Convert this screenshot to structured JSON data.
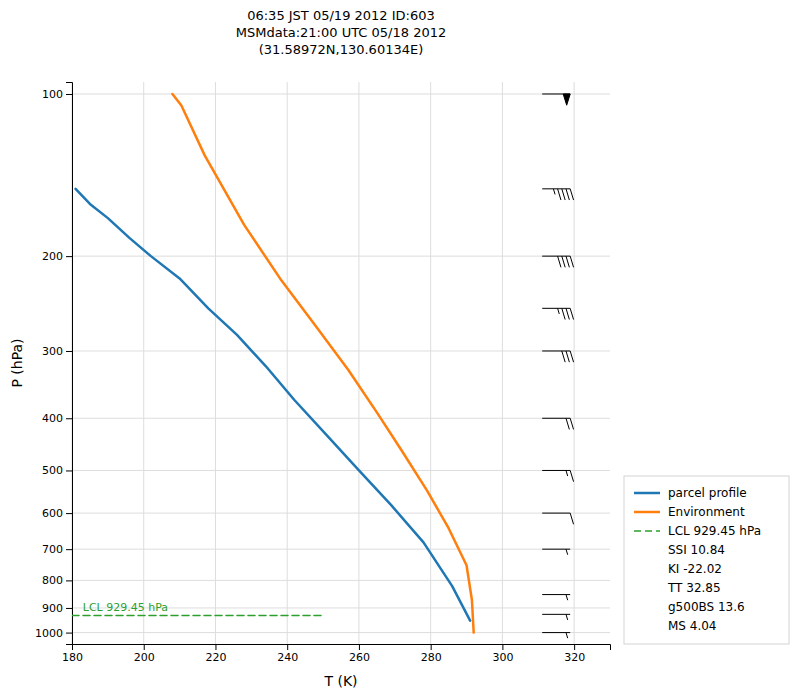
{
  "chart_data": {
    "type": "line",
    "title": "06:35 JST 05/19 2012  ID:603\nMSMdata:21:00 UTC 05/18 2012\n(31.58972N,130.60134E)",
    "x_label": "T (K)",
    "y_label": "P (hPa)",
    "log": "y",
    "grid": true,
    "legend": "lower right",
    "xlim": [
      180,
      330
    ],
    "xticks": [
      180,
      200,
      220,
      240,
      260,
      280,
      300,
      320
    ],
    "ylim": [
      1050,
      95
    ],
    "yticks": [
      100,
      200,
      300,
      400,
      500,
      600,
      700,
      800,
      900,
      1000
    ],
    "series": [
      {
        "name": "parcel profile",
        "color": "#1f77b4",
        "line_style": "solid",
        "x": [
          181.0,
          185.0,
          190.0,
          196.0,
          202.0,
          210.0,
          218.0,
          226.0,
          234.0,
          242.0,
          251.0,
          260.0,
          269.0,
          278.0,
          286.0,
          291.0
        ],
        "values": [
          150.0,
          160.0,
          170.0,
          185.0,
          200.0,
          220.0,
          250.0,
          280.0,
          320.0,
          370.0,
          430.0,
          500.0,
          580.0,
          680.0,
          820.0,
          950.0
        ]
      },
      {
        "name": "Environment",
        "color": "#ff7f0e",
        "line_style": "solid",
        "x": [
          208.0,
          210.5,
          217.0,
          228.0,
          238.0,
          248.0,
          257.0,
          265.0,
          272.0,
          279.0,
          285.0,
          290.0,
          291.5,
          292.0
        ],
        "values": [
          100.0,
          105.0,
          130.0,
          175.0,
          220.0,
          270.0,
          325.0,
          390.0,
          460.0,
          545.0,
          640.0,
          750.0,
          870.0,
          1000.0
        ]
      },
      {
        "name": "LCL 929.45 hPa",
        "color": "#2ca02c",
        "line_style": "dashed",
        "x": [
          180,
          250
        ],
        "values": [
          929.45,
          929.45
        ]
      }
    ],
    "annotations": [
      {
        "text": "LCL 929.45 hPa",
        "x": 183,
        "y": 929.45,
        "color": "#2ca02c"
      }
    ],
    "legend_text": [
      "SSI 10.84",
      "KI -22.02",
      "TT 32.85",
      "g500BS 13.6",
      "MS 4.04"
    ],
    "barb_x": 315.0,
    "wind_barbs": [
      {
        "p": 100,
        "u": -50,
        "v": 0
      },
      {
        "p": 150,
        "u": -45,
        "v": 0
      },
      {
        "p": 200,
        "u": -40,
        "v": 0
      },
      {
        "p": 250,
        "u": -35,
        "v": 0
      },
      {
        "p": 300,
        "u": -30,
        "v": 0
      },
      {
        "p": 400,
        "u": -20,
        "v": 0
      },
      {
        "p": 500,
        "u": -15,
        "v": 0
      },
      {
        "p": 600,
        "u": -10,
        "v": 0
      },
      {
        "p": 700,
        "u": -7,
        "v": 0
      },
      {
        "p": 850,
        "u": -5,
        "v": 0
      },
      {
        "p": 925,
        "u": -3,
        "v": 0
      },
      {
        "p": 1000,
        "u": -3,
        "v": 0
      }
    ]
  }
}
